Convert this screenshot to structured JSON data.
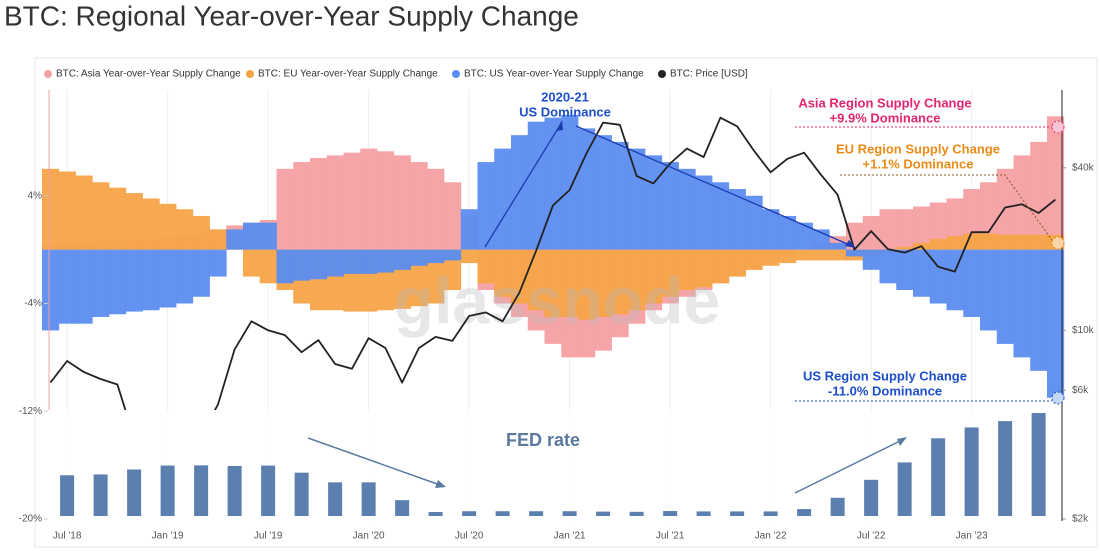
{
  "title": "BTC: Regional Year-over-Year Supply Change",
  "chart_data": [
    {
      "type": "bar",
      "watermark": "glassnode",
      "legend": "top-left",
      "grid": true,
      "x": [
        "2018-06",
        "2018-07",
        "2018-08",
        "2018-09",
        "2018-10",
        "2018-11",
        "2018-12",
        "2019-01",
        "2019-02",
        "2019-03",
        "2019-04",
        "2019-05",
        "2019-06",
        "2019-07",
        "2019-08",
        "2019-09",
        "2019-10",
        "2019-11",
        "2019-12",
        "2020-01",
        "2020-02",
        "2020-03",
        "2020-04",
        "2020-05",
        "2020-06",
        "2020-07",
        "2020-08",
        "2020-09",
        "2020-10",
        "2020-11",
        "2020-12",
        "2021-01",
        "2021-02",
        "2021-03",
        "2021-04",
        "2021-05",
        "2021-06",
        "2021-07",
        "2021-08",
        "2021-09",
        "2021-10",
        "2021-11",
        "2021-12",
        "2022-01",
        "2022-02",
        "2022-03",
        "2022-04",
        "2022-05",
        "2022-06",
        "2022-07",
        "2022-08",
        "2022-09",
        "2022-10",
        "2022-11",
        "2022-12",
        "2023-01",
        "2023-02",
        "2023-03",
        "2023-04",
        "2023-05",
        "2023-06"
      ],
      "xticks": [
        {
          "value": "2018-07",
          "label": "Jul '18"
        },
        {
          "value": "2019-01",
          "label": "Jan '19"
        },
        {
          "value": "2019-07",
          "label": "Jul '19"
        },
        {
          "value": "2020-01",
          "label": "Jan '20"
        },
        {
          "value": "2020-07",
          "label": "Jul '20"
        },
        {
          "value": "2021-01",
          "label": "Jan '21"
        },
        {
          "value": "2021-07",
          "label": "Jul '21"
        },
        {
          "value": "2022-01",
          "label": "Jan '22"
        },
        {
          "value": "2022-07",
          "label": "Jul '22"
        },
        {
          "value": "2023-01",
          "label": "Jan '23"
        }
      ],
      "ylim": [
        -20,
        12
      ],
      "yticks": [
        {
          "value": 4,
          "label": "4%"
        },
        {
          "value": -4,
          "label": "-4%"
        },
        {
          "value": -12,
          "label": "-12%"
        },
        {
          "value": -20,
          "label": "-20%"
        }
      ],
      "y2lim": [
        2000,
        79000
      ],
      "y2log": true,
      "y2ticks": [
        {
          "value": 2000,
          "label": "$2k"
        },
        {
          "value": 6000,
          "label": "$6k"
        },
        {
          "value": 10000,
          "label": "$10k"
        },
        {
          "value": 40000,
          "label": "$40k"
        }
      ],
      "series": [
        {
          "name": "BTC: Asia Year-over-Year Supply Change",
          "color": "#f4a0a2",
          "values": [
            0.3,
            0.4,
            0.5,
            0.6,
            0.6,
            0.7,
            0.8,
            0.9,
            1.0,
            1.2,
            1.5,
            1.8,
            2.0,
            2.2,
            6.0,
            6.5,
            6.8,
            7.0,
            7.2,
            7.5,
            7.3,
            7.0,
            6.5,
            6.0,
            5.0,
            2.5,
            -3.0,
            -4.0,
            -5.0,
            -6.0,
            -7.0,
            -8.0,
            -8.0,
            -7.5,
            -6.5,
            -5.5,
            -4.5,
            -4.0,
            -3.5,
            -3.0,
            -2.5,
            -2.0,
            -1.5,
            -1.0,
            -0.5,
            0.0,
            0.5,
            1.0,
            2.0,
            2.5,
            3.0,
            3.0,
            3.2,
            3.5,
            3.8,
            4.5,
            5.0,
            6.0,
            7.0,
            8.0,
            9.9
          ]
        },
        {
          "name": "BTC: EU Year-over-Year Supply Change",
          "color": "#f5a447",
          "values": [
            6.0,
            5.8,
            5.5,
            5.0,
            4.6,
            4.2,
            3.8,
            3.4,
            3.0,
            2.5,
            1.5,
            0.5,
            -2.0,
            -2.5,
            -3.0,
            -4.0,
            -4.5,
            -4.5,
            -4.6,
            -4.6,
            -4.5,
            -4.4,
            -4.2,
            -4.0,
            -3.0,
            -1.0,
            -2.5,
            -3.5,
            -4.0,
            -4.5,
            -5.0,
            -5.0,
            -5.2,
            -5.0,
            -4.8,
            -4.5,
            -4.0,
            -3.5,
            -3.0,
            -2.8,
            -2.5,
            -2.0,
            -1.5,
            -1.2,
            -1.0,
            -0.8,
            -0.8,
            -0.8,
            -0.8,
            -0.5,
            -0.2,
            0.2,
            0.5,
            0.8,
            1.0,
            1.2,
            1.2,
            1.1,
            1.1,
            1.1,
            1.1
          ]
        },
        {
          "name": "BTC: US Year-over-Year Supply Change",
          "color": "#5b8cef",
          "values": [
            -6.0,
            -5.5,
            -5.5,
            -5.0,
            -4.8,
            -4.6,
            -4.5,
            -4.3,
            -4.0,
            -3.5,
            -2.0,
            1.5,
            2.0,
            2.0,
            -2.5,
            -2.3,
            -2.2,
            -2.0,
            -1.8,
            -1.8,
            -1.7,
            -1.5,
            -1.2,
            -1.0,
            -0.8,
            3.0,
            6.5,
            7.5,
            8.5,
            9.5,
            9.8,
            10.0,
            9.0,
            8.5,
            8.0,
            7.5,
            7.0,
            6.5,
            6.0,
            5.5,
            5.0,
            4.5,
            4.0,
            3.0,
            2.5,
            2.0,
            1.5,
            0.5,
            -0.5,
            -1.5,
            -2.5,
            -3.0,
            -3.5,
            -4.0,
            -4.5,
            -5.0,
            -6.0,
            -7.0,
            -8.0,
            -9.0,
            -11.0
          ]
        },
        {
          "name": "BTC: Price [USD]",
          "color": "#222222",
          "type": "line",
          "axis": "y2",
          "values": [
            6400,
            7700,
            7000,
            6600,
            6300,
            4000,
            3700,
            3450,
            3800,
            4100,
            5300,
            8500,
            10800,
            10000,
            9600,
            8300,
            9200,
            7500,
            7200,
            9350,
            8600,
            6400,
            8600,
            9450,
            9140,
            11300,
            11650,
            10800,
            13800,
            19700,
            29000,
            33100,
            45200,
            58800,
            57700,
            37300,
            35000,
            41500,
            47100,
            43800,
            61300,
            57000,
            46300,
            38500,
            43200,
            45500,
            37700,
            31800,
            19900,
            23300,
            20000,
            19400,
            20500,
            17200,
            16500,
            23100,
            23100,
            28500,
            29300,
            27200,
            30500
          ]
        }
      ],
      "annotations": [
        {
          "lines": [
            "2020-21",
            "US Dominance"
          ],
          "color": "#1d4fc9"
        },
        {
          "lines": [
            "Asia Region Supply Change",
            "+9.9% Dominance"
          ],
          "color": "#e3246f"
        },
        {
          "lines": [
            "EU Region Supply Change",
            "+1.1% Dominance"
          ],
          "color": "#ea8a17"
        },
        {
          "lines": [
            "US Region Supply Change",
            "-11.0% Dominance"
          ],
          "color": "#1d4fc9"
        }
      ]
    },
    {
      "type": "bar",
      "title": "FED rate",
      "color": "#5b7fae",
      "x": [
        "2018-07",
        "2018-09",
        "2018-11",
        "2019-01",
        "2019-03",
        "2019-05",
        "2019-07",
        "2019-09",
        "2019-11",
        "2020-01",
        "2020-03",
        "2020-05",
        "2020-07",
        "2020-09",
        "2020-11",
        "2021-01",
        "2021-03",
        "2021-05",
        "2021-07",
        "2021-09",
        "2021-11",
        "2022-01",
        "2022-03",
        "2022-05",
        "2022-07",
        "2022-09",
        "2022-11",
        "2023-01",
        "2023-03",
        "2023-05"
      ],
      "values": [
        1.91,
        1.95,
        2.2,
        2.4,
        2.41,
        2.38,
        2.4,
        2.04,
        1.55,
        1.55,
        0.65,
        0.05,
        0.09,
        0.09,
        0.09,
        0.09,
        0.07,
        0.06,
        0.1,
        0.08,
        0.08,
        0.08,
        0.2,
        0.77,
        1.68,
        2.56,
        3.78,
        4.33,
        4.65,
        5.06
      ]
    }
  ]
}
